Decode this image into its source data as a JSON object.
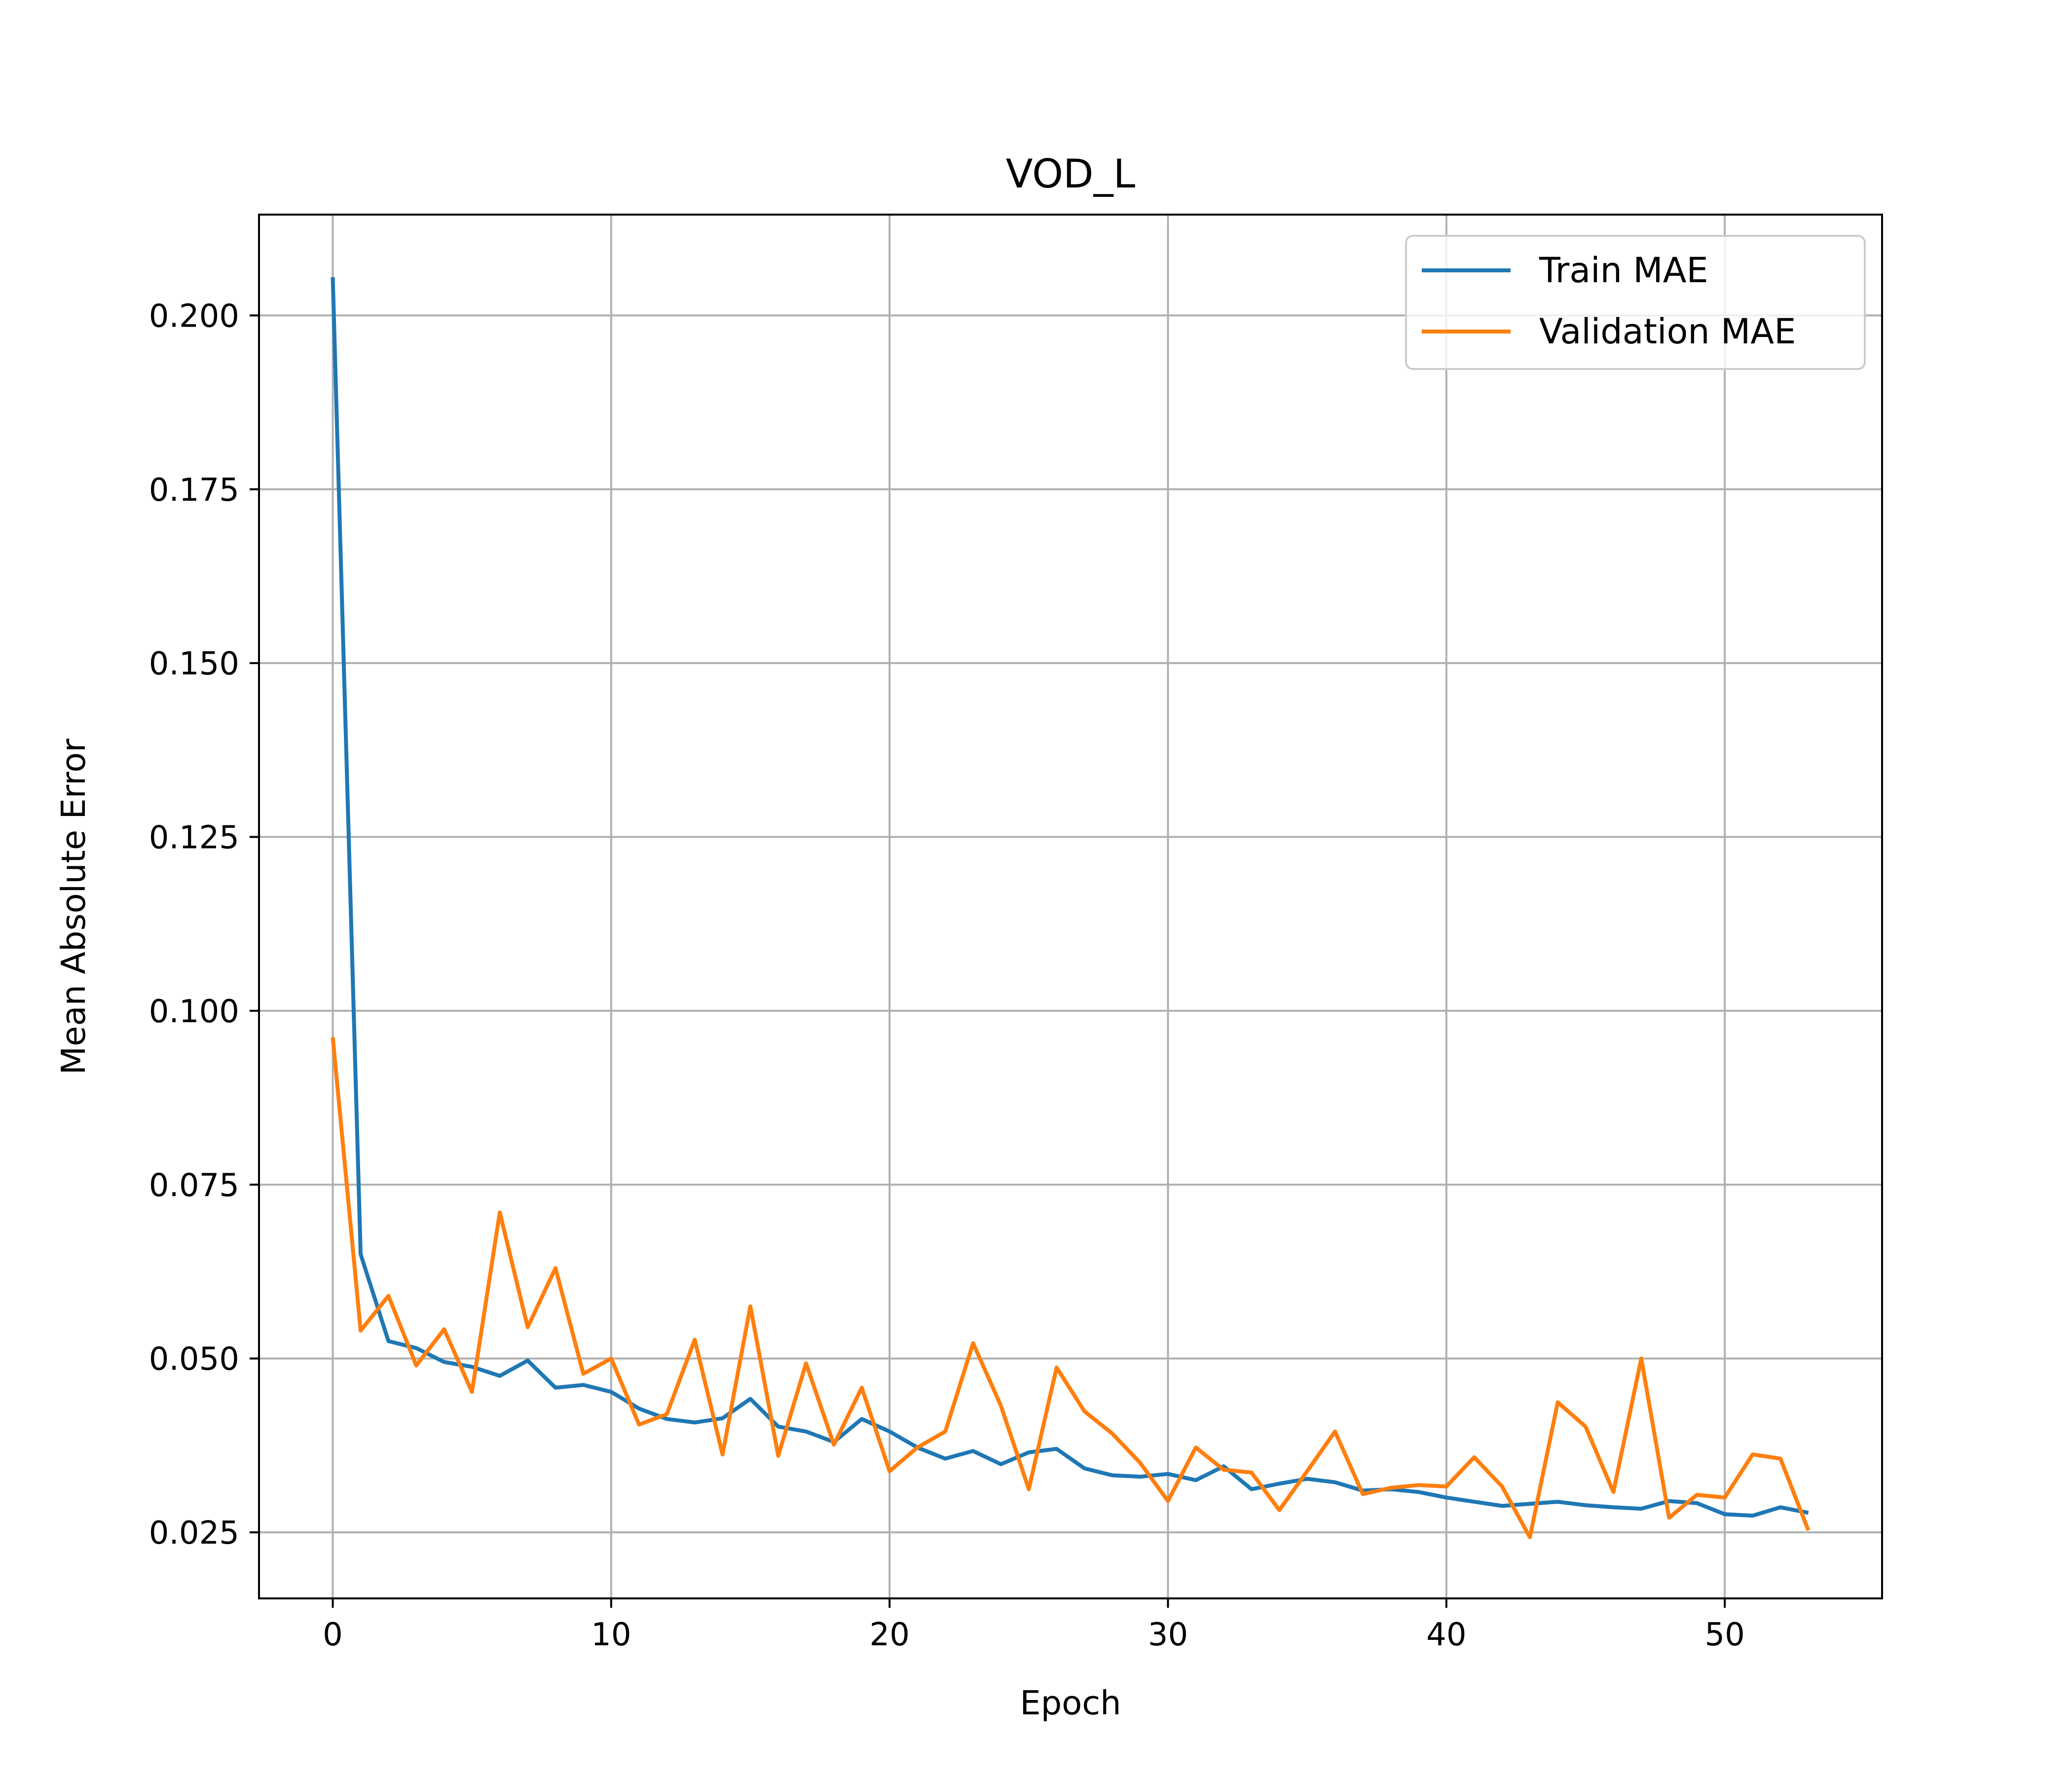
{
  "chart_data": {
    "type": "line",
    "title": "VOD_L",
    "xlabel": "Epoch",
    "ylabel": "Mean Absolute Error",
    "xlim": [
      -2.65,
      55.65
    ],
    "ylim": [
      0.0155,
      0.2145
    ],
    "x_ticks": [
      0,
      10,
      20,
      30,
      40,
      50
    ],
    "x_tick_labels": [
      "0",
      "10",
      "20",
      "30",
      "40",
      "50"
    ],
    "y_ticks": [
      0.025,
      0.05,
      0.075,
      0.1,
      0.125,
      0.15,
      0.175,
      0.2
    ],
    "y_tick_labels": [
      "0.025",
      "0.050",
      "0.075",
      "0.100",
      "0.125",
      "0.150",
      "0.175",
      "0.200"
    ],
    "grid": true,
    "legend_position": "top-right",
    "x": [
      0,
      1,
      2,
      3,
      4,
      5,
      6,
      7,
      8,
      9,
      10,
      11,
      12,
      13,
      14,
      15,
      16,
      17,
      18,
      19,
      20,
      21,
      22,
      23,
      24,
      25,
      26,
      27,
      28,
      29,
      30,
      31,
      32,
      33,
      34,
      35,
      36,
      37,
      38,
      39,
      40,
      41,
      42,
      43,
      44,
      45,
      46,
      47,
      48,
      49,
      50,
      51,
      52,
      53
    ],
    "series": [
      {
        "name": "Train MAE",
        "color": "#1f77b4",
        "values": [
          0.2055,
          0.065,
          0.0525,
          0.0515,
          0.0495,
          0.0488,
          0.0475,
          0.0497,
          0.0458,
          0.0462,
          0.0452,
          0.0428,
          0.0413,
          0.0408,
          0.0414,
          0.0442,
          0.0402,
          0.0395,
          0.038,
          0.0413,
          0.0395,
          0.0372,
          0.0356,
          0.0367,
          0.0348,
          0.0365,
          0.037,
          0.0342,
          0.0332,
          0.033,
          0.0334,
          0.0325,
          0.0345,
          0.0312,
          0.032,
          0.0327,
          0.0322,
          0.031,
          0.0312,
          0.0308,
          0.03,
          0.0294,
          0.0288,
          0.0291,
          0.0294,
          0.0289,
          0.0286,
          0.0284,
          0.0295,
          0.0292,
          0.0276,
          0.0274,
          0.0286,
          0.0278
        ]
      },
      {
        "name": "Validation MAE",
        "color": "#ff7f0e",
        "values": [
          0.0962,
          0.054,
          0.059,
          0.049,
          0.0542,
          0.0452,
          0.071,
          0.0545,
          0.063,
          0.0478,
          0.05,
          0.0405,
          0.042,
          0.0527,
          0.0362,
          0.0575,
          0.036,
          0.0493,
          0.0376,
          0.0458,
          0.0338,
          0.0372,
          0.0395,
          0.0522,
          0.0432,
          0.0312,
          0.0487,
          0.0424,
          0.0392,
          0.035,
          0.0295,
          0.0372,
          0.034,
          0.0336,
          0.0282,
          0.0338,
          0.0395,
          0.0305,
          0.0314,
          0.0318,
          0.0316,
          0.0358,
          0.0316,
          0.0243,
          0.0437,
          0.0402,
          0.0308,
          0.05,
          0.0271,
          0.0304,
          0.03,
          0.0362,
          0.0356,
          0.0253
        ]
      }
    ]
  }
}
